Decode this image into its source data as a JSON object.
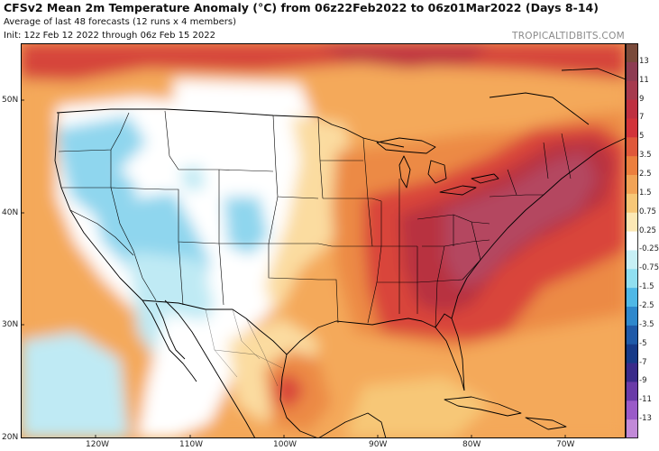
{
  "header": {
    "title": "CFSv2 Mean 2m Temperature Anomaly (°C) from 06z22Feb2022 to 06z01Mar2022 (Days 8-14)",
    "subtitle1": "Average of last 48 forecasts (12 runs x 4 members)",
    "subtitle2": "Init: 12z Feb 12 2022 through 06z Feb 15 2022",
    "credit": "TROPICALTIDBITS.COM"
  },
  "axes": {
    "lat_labels": [
      "50N",
      "40N",
      "30N",
      "20N"
    ],
    "lon_labels": [
      "120W",
      "110W",
      "100W",
      "90W",
      "80W",
      "70W"
    ]
  },
  "colorbar": {
    "labels": [
      "13",
      "11",
      "9",
      "7",
      "5",
      "3.5",
      "2.5",
      "1.5",
      "0.75",
      "0.25",
      "-0.25",
      "-0.75",
      "-1.5",
      "-2.5",
      "-3.5",
      "-5",
      "-7",
      "-9",
      "-11",
      "-13"
    ],
    "colors": [
      "#7a4a3a",
      "#8e3c52",
      "#a63a4e",
      "#bf3040",
      "#d2333a",
      "#e0583a",
      "#ec7f3e",
      "#f2a356",
      "#f7c777",
      "#fce8b4",
      "#ffffff",
      "#c7f0f5",
      "#90dff0",
      "#4fb8e6",
      "#2e88cc",
      "#1f5aa8",
      "#173a88",
      "#3a2a8a",
      "#6a3aa8",
      "#9a5ac8",
      "#c28ad8"
    ]
  },
  "legend_colors": {
    "neutral": "#ffffff",
    "cool_light": "#bfeaf4",
    "cool": "#8fd6ee",
    "warm_light": "#fbdca0",
    "warm": "#f4b25f",
    "warm_mid": "#ec8a44",
    "hot": "#d9453a",
    "very_hot": "#b8303f",
    "extreme": "#b44660",
    "outline": "#000000"
  }
}
